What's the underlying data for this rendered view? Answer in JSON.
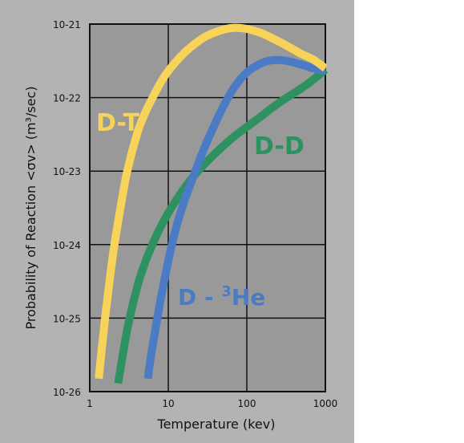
{
  "chart_data": {
    "type": "line",
    "xlabel": "Temperature (kev)",
    "ylabel": "Probability of Reaction <σv> (m³/sec)",
    "x_scale": "log",
    "y_scale": "log",
    "xlim": [
      1,
      1000
    ],
    "ylim": [
      1e-26,
      1e-21
    ],
    "x_ticks": [
      {
        "value": 1,
        "label": "1"
      },
      {
        "value": 10,
        "label": "10"
      },
      {
        "value": 100,
        "label": "100"
      },
      {
        "value": 1000,
        "label": "1000"
      }
    ],
    "y_ticks": [
      {
        "value": 1e-21,
        "label": "10-21"
      },
      {
        "value": 1e-22,
        "label": "10-22"
      },
      {
        "value": 1e-23,
        "label": "10-23"
      },
      {
        "value": 1e-24,
        "label": "10-24"
      },
      {
        "value": 1e-25,
        "label": "10-25"
      },
      {
        "value": 1e-26,
        "label": "10-26"
      }
    ],
    "grid": true,
    "background_color": "#b3b3b3",
    "plot_background_color": "#999999",
    "series": [
      {
        "name": "D-T",
        "color": "#f8d35a",
        "label_text": "D-T",
        "x": [
          1.3,
          1.6,
          2,
          2.5,
          3,
          4,
          5,
          6,
          8,
          10,
          15,
          20,
          30,
          50,
          70,
          100,
          150,
          200,
          300,
          500,
          700,
          1000
        ],
        "y": [
          1.5e-26,
          1.2e-25,
          8e-25,
          3.5e-24,
          1e-23,
          3.2e-23,
          6e-23,
          9e-23,
          1.6e-22,
          2.3e-22,
          3.8e-22,
          5e-22,
          6.8e-22,
          8.4e-22,
          8.9e-22,
          8.6e-22,
          7.6e-22,
          6.6e-22,
          5.3e-22,
          3.9e-22,
          3.3e-22,
          2.5e-22
        ]
      },
      {
        "name": "D-D",
        "color": "#2e9160",
        "label_text": "D-D",
        "x": [
          2.3,
          3,
          4,
          5,
          7,
          10,
          15,
          20,
          30,
          50,
          70,
          100,
          150,
          200,
          300,
          500,
          700,
          1000
        ],
        "y": [
          1.3e-26,
          7e-26,
          2.6e-25,
          5.5e-25,
          1.3e-24,
          2.7e-24,
          5.3e-24,
          8e-24,
          1.3e-23,
          2.2e-23,
          3e-23,
          4e-23,
          5.5e-23,
          7e-23,
          9.5e-23,
          1.35e-22,
          1.75e-22,
          2.4e-22
        ]
      },
      {
        "name": "D-3He",
        "color": "#4a7bc4",
        "label_text": "D - ",
        "label_sup": "3",
        "label_tail": "He",
        "x": [
          5.5,
          6,
          7,
          8,
          10,
          12,
          15,
          20,
          30,
          50,
          70,
          100,
          150,
          200,
          300,
          500,
          700,
          1000
        ],
        "y": [
          1.5e-26,
          3e-26,
          8e-26,
          1.8e-25,
          6e-25,
          1.4e-24,
          3.2e-24,
          7.5e-24,
          2.3e-23,
          7.5e-23,
          1.4e-22,
          2.2e-22,
          2.9e-22,
          3.2e-22,
          3.2e-22,
          2.8e-22,
          2.5e-22,
          2.3e-22
        ]
      }
    ]
  }
}
